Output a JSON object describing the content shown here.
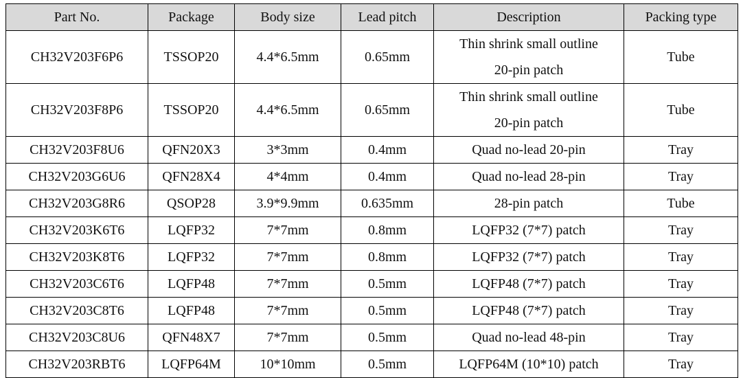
{
  "table": {
    "header": [
      "Part No.",
      "Package",
      "Body size",
      "Lead pitch",
      "Description",
      "Packing type"
    ],
    "rows": [
      [
        "CH32V203F6P6",
        "TSSOP20",
        "4.4*6.5mm",
        "0.65mm",
        "Thin shrink small outline\n20-pin patch",
        "Tube"
      ],
      [
        "CH32V203F8P6",
        "TSSOP20",
        "4.4*6.5mm",
        "0.65mm",
        "Thin shrink small outline\n20-pin patch",
        "Tube"
      ],
      [
        "CH32V203F8U6",
        "QFN20X3",
        "3*3mm",
        "0.4mm",
        "Quad no-lead 20-pin",
        "Tray"
      ],
      [
        "CH32V203G6U6",
        "QFN28X4",
        "4*4mm",
        "0.4mm",
        "Quad no-lead 28-pin",
        "Tray"
      ],
      [
        "CH32V203G8R6",
        "QSOP28",
        "3.9*9.9mm",
        "0.635mm",
        "28-pin patch",
        "Tube"
      ],
      [
        "CH32V203K6T6",
        "LQFP32",
        "7*7mm",
        "0.8mm",
        "LQFP32 (7*7) patch",
        "Tray"
      ],
      [
        "CH32V203K8T6",
        "LQFP32",
        "7*7mm",
        "0.8mm",
        "LQFP32 (7*7) patch",
        "Tray"
      ],
      [
        "CH32V203C6T6",
        "LQFP48",
        "7*7mm",
        "0.5mm",
        "LQFP48 (7*7) patch",
        "Tray"
      ],
      [
        "CH32V203C8T6",
        "LQFP48",
        "7*7mm",
        "0.5mm",
        "LQFP48 (7*7) patch",
        "Tray"
      ],
      [
        "CH32V203C8U6",
        "QFN48X7",
        "7*7mm",
        "0.5mm",
        "Quad no-lead 48-pin",
        "Tray"
      ],
      [
        "CH32V203RBT6",
        "LQFP64M",
        "10*10mm",
        "0.5mm",
        "LQFP64M (10*10) patch",
        "Tray"
      ]
    ]
  }
}
